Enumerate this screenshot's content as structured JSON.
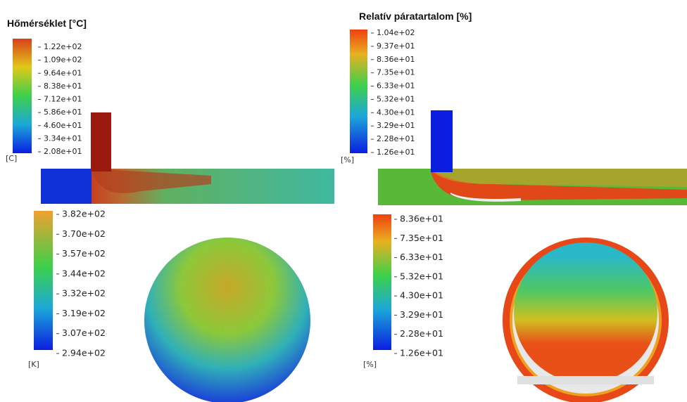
{
  "top_left": {
    "title": "Hőmérséklet [°C]",
    "colorbar": {
      "labels": [
        "1.22e+02",
        "1.09e+02",
        "9.64e+01",
        "8.38e+01",
        "7.12e+01",
        "5.86e+01",
        "4.60e+01",
        "3.34e+01",
        "2.08e+01"
      ],
      "unit": "[C]"
    }
  },
  "top_right": {
    "title": "Relatív páratartalom [%]",
    "colorbar": {
      "labels": [
        "1.04e+02",
        "9.37e+01",
        "8.36e+01",
        "7.35e+01",
        "6.33e+01",
        "5.32e+01",
        "4.30e+01",
        "3.29e+01",
        "2.28e+01",
        "1.26e+01"
      ],
      "unit": "[%]"
    }
  },
  "bottom_left": {
    "colorbar": {
      "labels": [
        "3.82e+02",
        "3.70e+02",
        "3.57e+02",
        "3.44e+02",
        "3.32e+02",
        "3.19e+02",
        "3.07e+02",
        "2.94e+02"
      ],
      "unit": "[K]"
    }
  },
  "bottom_right": {
    "colorbar": {
      "labels": [
        "8.36e+01",
        "7.35e+01",
        "6.33e+01",
        "5.32e+01",
        "4.30e+01",
        "3.29e+01",
        "2.28e+01",
        "1.26e+01"
      ],
      "unit": "[%]"
    }
  }
}
